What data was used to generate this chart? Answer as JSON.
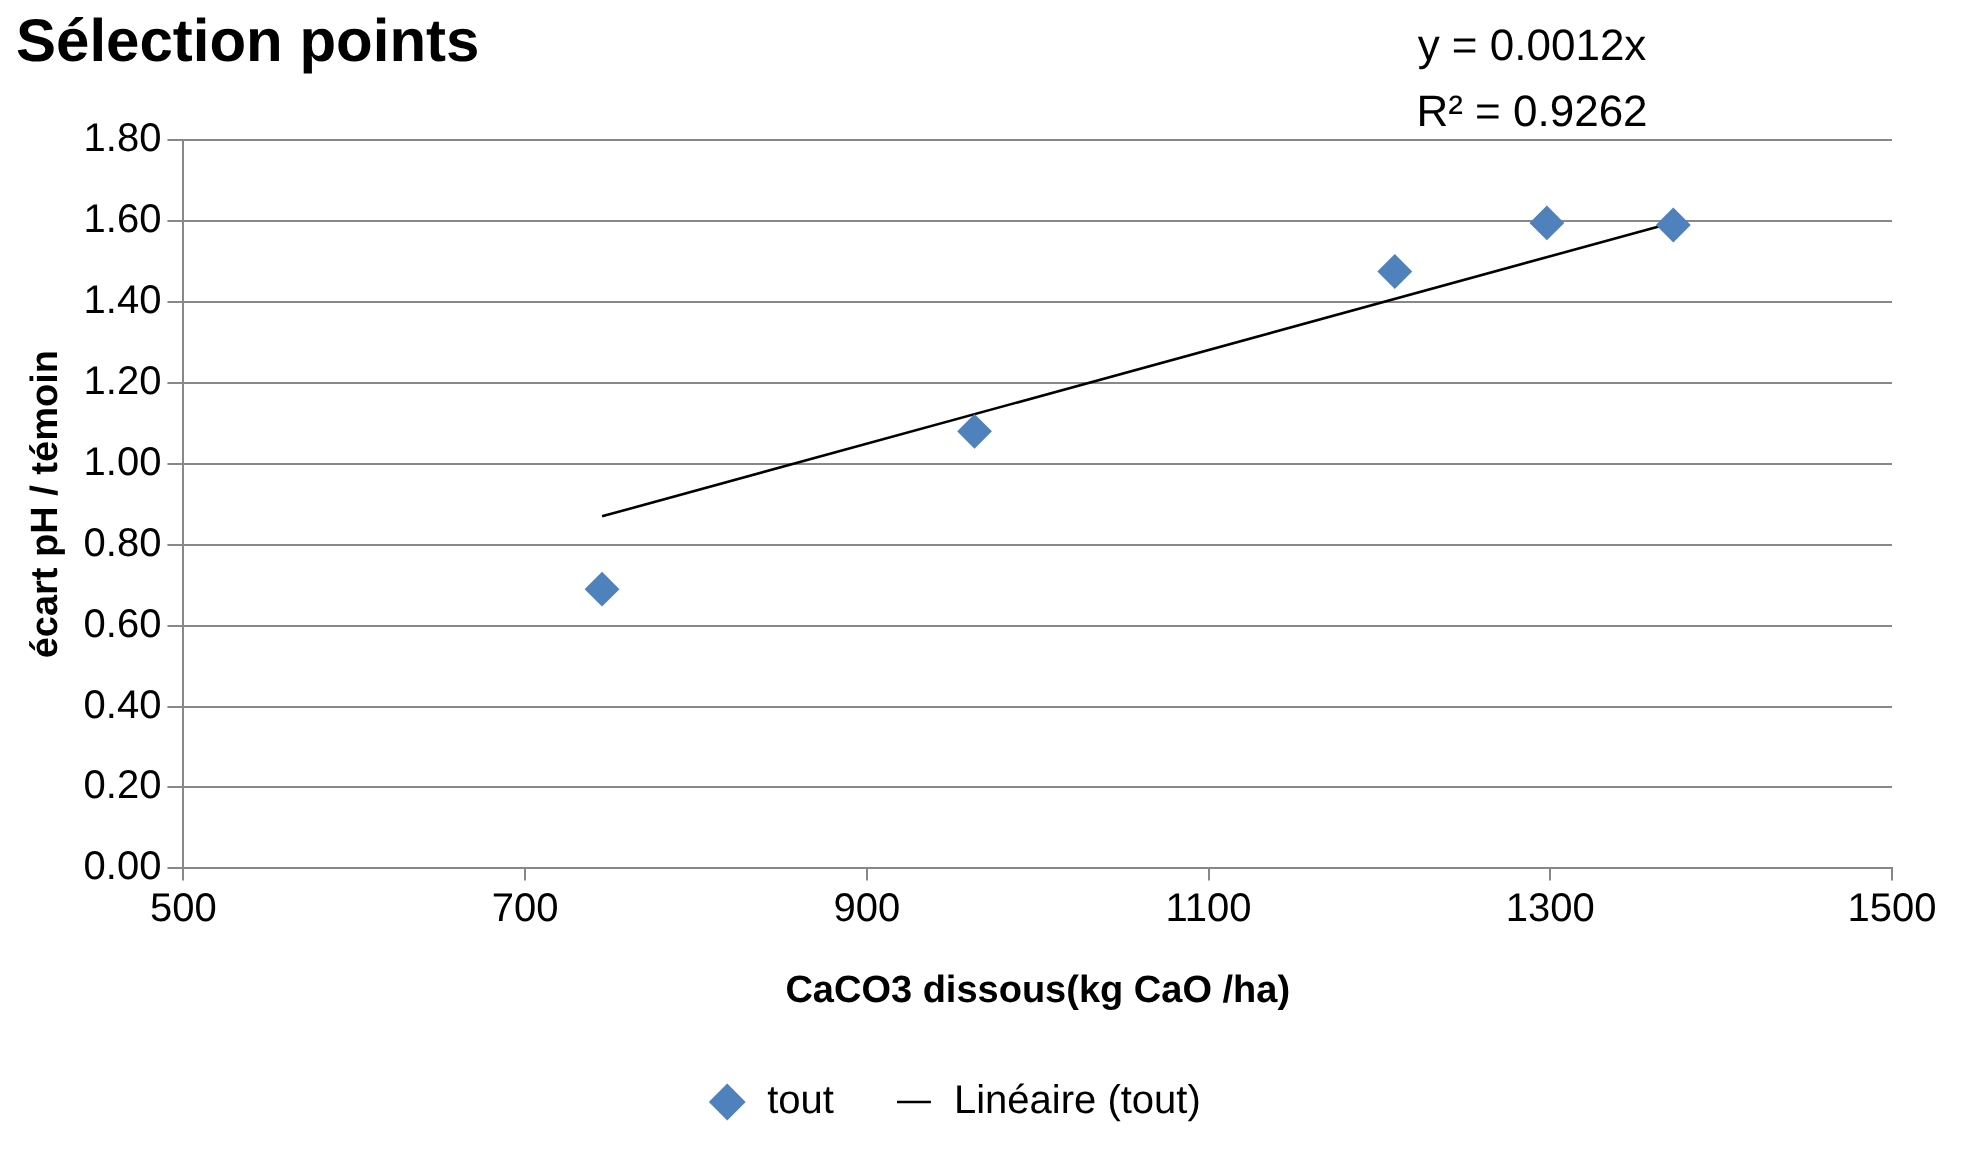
{
  "chart_data": {
    "type": "scatter",
    "title": "Sélection points",
    "xlabel": "CaCO3 dissous(kg CaO /ha)",
    "ylabel": "écart pH / témoin",
    "annotations": [
      "y = 0.0012x",
      "R² = 0.9262"
    ],
    "series": [
      {
        "name": "tout",
        "type": "scatter",
        "color": "#4f81bd",
        "marker": "diamond",
        "x": [
          745,
          963,
          1209,
          1298,
          1372
        ],
        "values": [
          0.69,
          1.08,
          1.475,
          1.595,
          1.59
        ]
      },
      {
        "name": "Linéaire (tout)",
        "type": "line",
        "color": "#000000",
        "marker": "none",
        "x": [
          745,
          1371
        ],
        "values": [
          0.87,
          1.595
        ]
      }
    ],
    "xlim": [
      500,
      1500
    ],
    "xticks": [
      500,
      700,
      900,
      1100,
      1300,
      1500
    ],
    "ylim": [
      0,
      1.8
    ],
    "yticks": [
      {
        "value": 0,
        "label": "0.00"
      },
      {
        "value": 0.2,
        "label": "0.20"
      },
      {
        "value": 0.4,
        "label": "0.40"
      },
      {
        "value": 0.6,
        "label": "0.60"
      },
      {
        "value": 0.8,
        "label": "0.80"
      },
      {
        "value": 1,
        "label": "1.00"
      },
      {
        "value": 1.2,
        "label": "1.20"
      },
      {
        "value": 1.4,
        "label": "1.40"
      },
      {
        "value": 1.6,
        "label": "1.60"
      },
      {
        "value": 1.8,
        "label": "1.80"
      }
    ],
    "grid": "y",
    "legend": "bottom"
  }
}
